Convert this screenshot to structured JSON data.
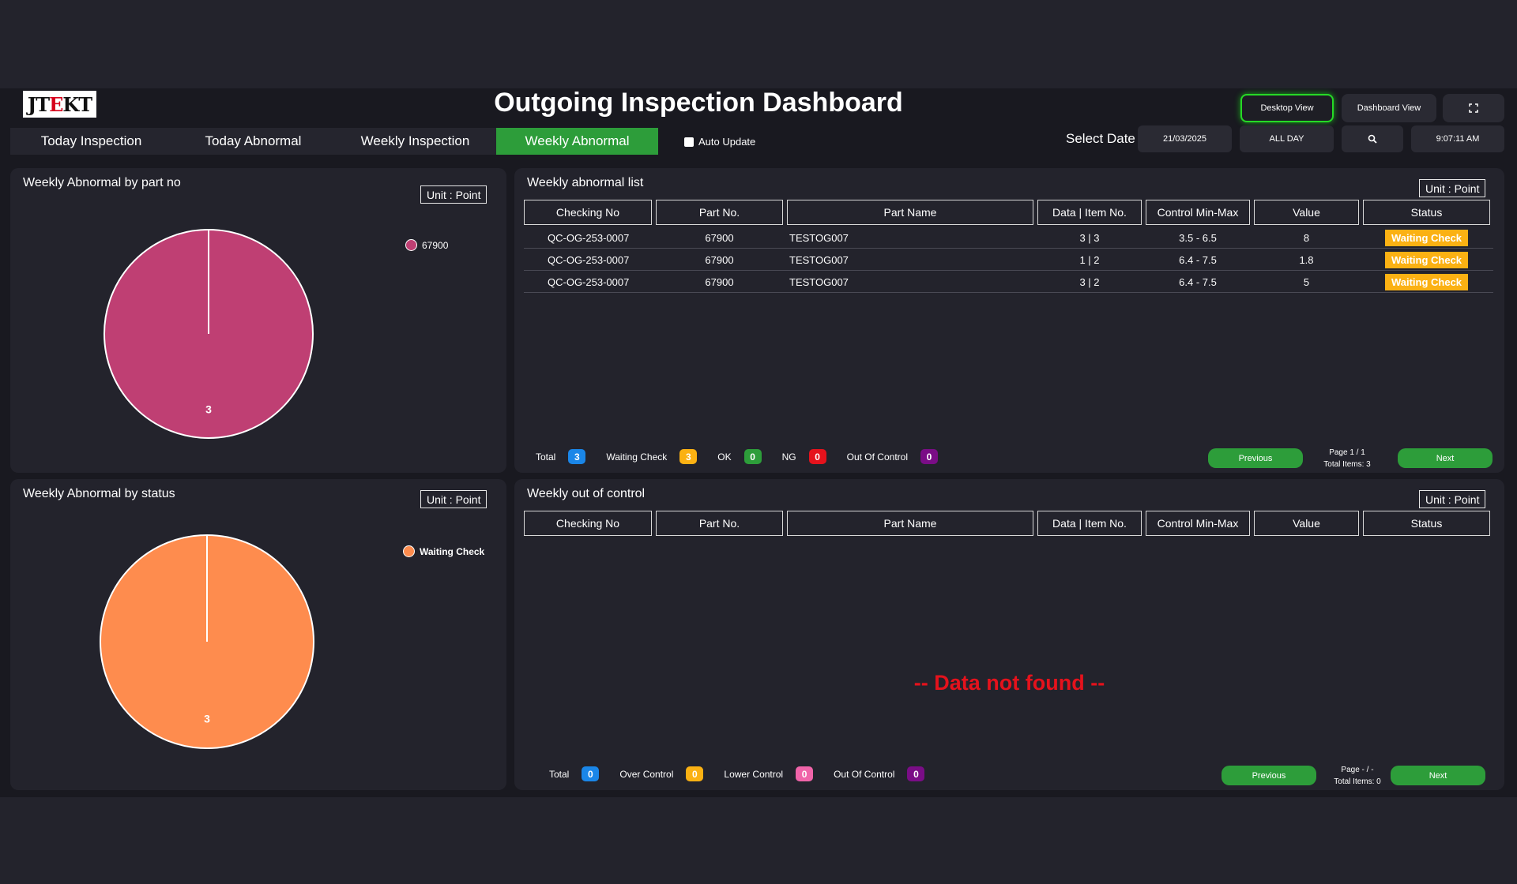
{
  "header": {
    "logo_text": "JTEKT",
    "title": "Outgoing Inspection Dashboard",
    "desktop_view": "Desktop View",
    "dashboard_view": "Dashboard View",
    "fullscreen_icon": "fullscreen-icon"
  },
  "tabs": [
    {
      "label": "Today Inspection",
      "active": false
    },
    {
      "label": "Today Abnormal",
      "active": false
    },
    {
      "label": "Weekly Inspection",
      "active": false
    },
    {
      "label": "Weekly Abnormal",
      "active": true
    }
  ],
  "auto_update": {
    "label": "Auto Update",
    "checked": false
  },
  "date_filter": {
    "label": "Select Date",
    "date": "21/03/2025",
    "range": "ALL DAY",
    "search_icon": "search-icon",
    "time": "9:07:11 AM"
  },
  "colors": {
    "accent_green": "#2d9d3a",
    "pie_part": "#bf3f73",
    "pie_status": "#fe8c4e",
    "waiting": "#fbb113",
    "no_data": "#e5121c"
  },
  "part_panel": {
    "title": "Weekly Abnormal by part no",
    "unit": "Unit : Point",
    "legend": [
      {
        "label": "67900",
        "color": "#bf3f73"
      }
    ]
  },
  "status_panel": {
    "title": "Weekly Abnormal by status",
    "unit": "Unit : Point",
    "legend": [
      {
        "label": "Waiting Check",
        "color": "#fe8c4e"
      }
    ]
  },
  "chart_data": [
    {
      "type": "pie",
      "title": "Weekly Abnormal by part no",
      "categories": [
        "67900"
      ],
      "values": [
        3
      ],
      "colors": [
        "#bf3f73"
      ],
      "legend": "right"
    },
    {
      "type": "pie",
      "title": "Weekly Abnormal by status",
      "categories": [
        "Waiting Check"
      ],
      "values": [
        3
      ],
      "colors": [
        "#fe8c4e"
      ],
      "legend": "right"
    }
  ],
  "abnormal_list": {
    "title": "Weekly abnormal list",
    "unit": "Unit : Point",
    "columns": [
      "Checking No",
      "Part No.",
      "Part Name",
      "Data | Item No.",
      "Control Min-Max",
      "Value",
      "Status"
    ],
    "rows": [
      {
        "checking_no": "QC-OG-253-0007",
        "part_no": "67900",
        "part_name": "TESTOG007",
        "data_item": "3 | 3",
        "control": "3.5 - 6.5",
        "value": "8",
        "status": "Waiting Check"
      },
      {
        "checking_no": "QC-OG-253-0007",
        "part_no": "67900",
        "part_name": "TESTOG007",
        "data_item": "1 | 2",
        "control": "6.4 - 7.5",
        "value": "1.8",
        "status": "Waiting Check"
      },
      {
        "checking_no": "QC-OG-253-0007",
        "part_no": "67900",
        "part_name": "TESTOG007",
        "data_item": "3 | 2",
        "control": "6.4 - 7.5",
        "value": "5",
        "status": "Waiting Check"
      }
    ],
    "summary": [
      {
        "label": "Total",
        "count": "3",
        "color": "#1a86e8"
      },
      {
        "label": "Waiting Check",
        "count": "3",
        "color": "#fbb113"
      },
      {
        "label": "OK",
        "count": "0",
        "color": "#2d9d3a"
      },
      {
        "label": "NG",
        "count": "0",
        "color": "#e5121c"
      },
      {
        "label": "Out Of Control",
        "count": "0",
        "color": "#7a0d86"
      }
    ],
    "previous": "Previous",
    "next": "Next",
    "page": "Page 1 / 1",
    "total_items": "Total Items: 3"
  },
  "out_of_control": {
    "title": "Weekly out of control",
    "unit": "Unit : Point",
    "columns": [
      "Checking No",
      "Part No.",
      "Part Name",
      "Data | Item No.",
      "Control Min-Max",
      "Value",
      "Status"
    ],
    "no_data": "-- Data not found --",
    "summary": [
      {
        "label": "Total",
        "count": "0",
        "color": "#1a86e8"
      },
      {
        "label": "Over Control",
        "count": "0",
        "color": "#fbb113"
      },
      {
        "label": "Lower Control",
        "count": "0",
        "color": "#f064a9"
      },
      {
        "label": "Out Of Control",
        "count": "0",
        "color": "#7a0d86"
      }
    ],
    "previous": "Previous",
    "next": "Next",
    "page": "Page - / -",
    "total_items": "Total Items: 0"
  }
}
